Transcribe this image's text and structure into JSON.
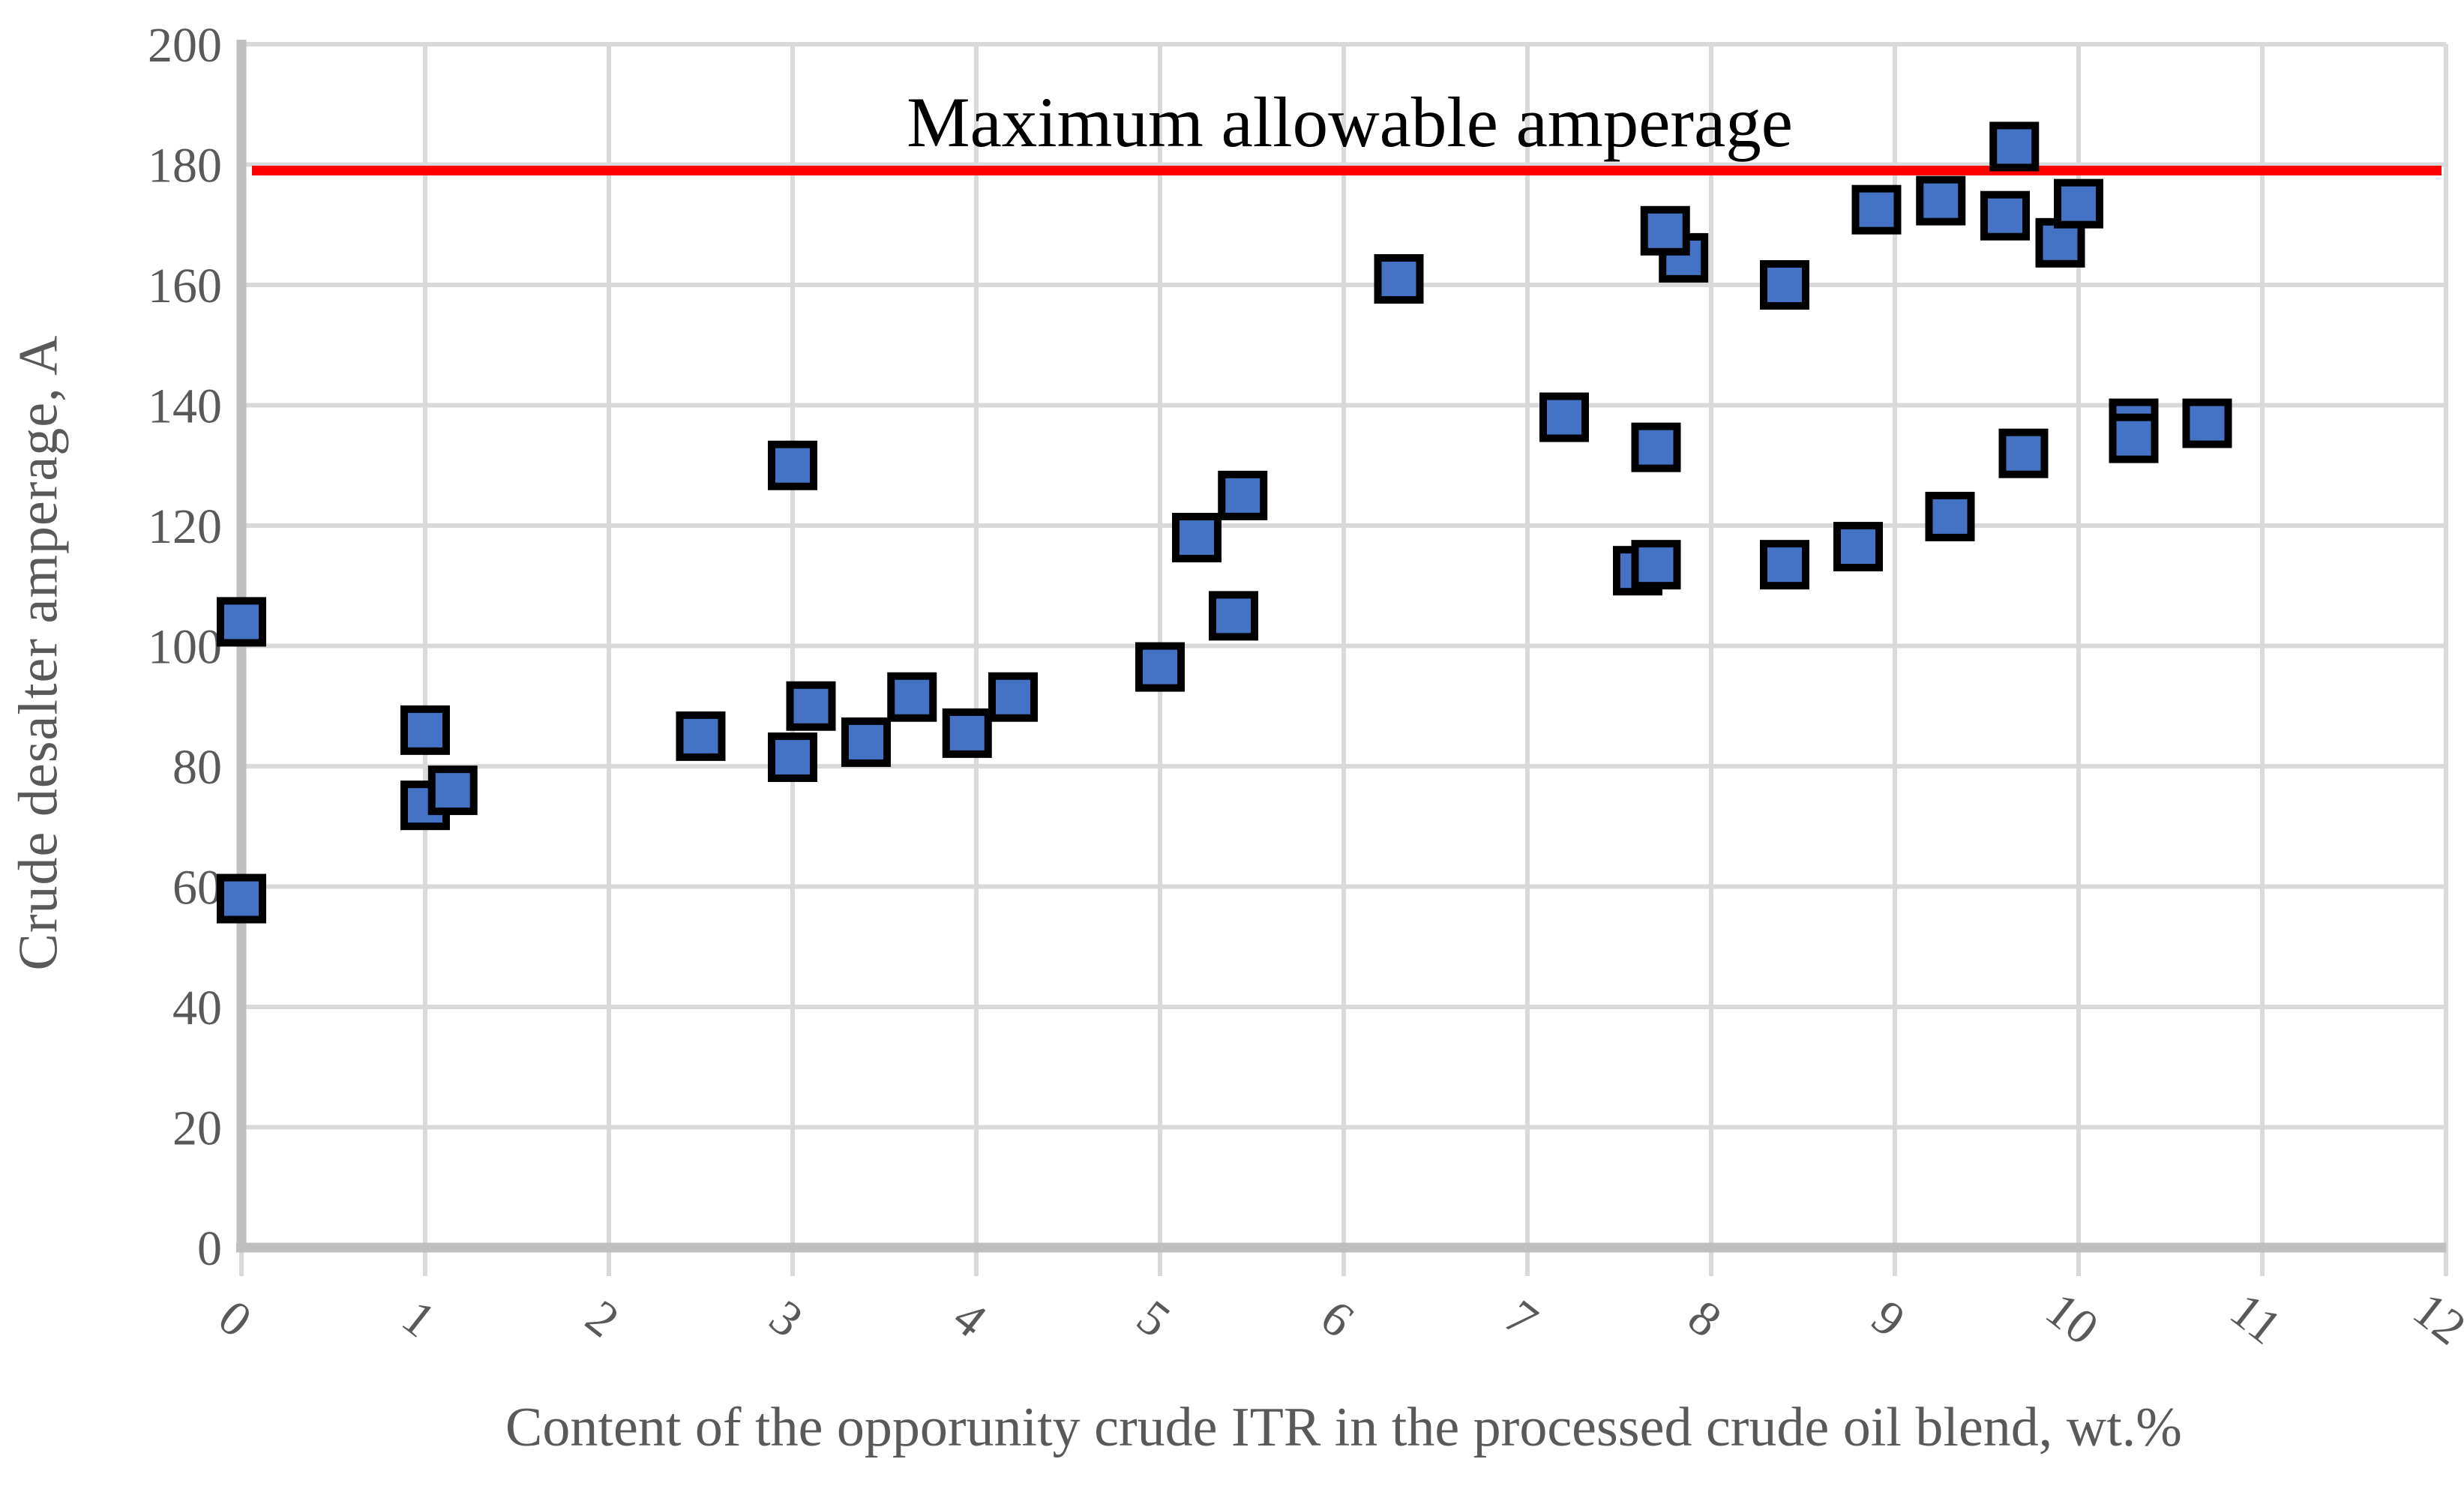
{
  "chart_data": {
    "type": "scatter",
    "title": "",
    "xlabel": "Content of the opporunity crude ITR in the processed crude oil blend, wt.%",
    "ylabel": "Crude desalter amperage, A",
    "xlim": [
      0,
      12
    ],
    "ylim": [
      0,
      200
    ],
    "x_ticks": [
      0,
      1,
      2,
      3,
      4,
      5,
      6,
      7,
      8,
      9,
      10,
      11,
      12
    ],
    "y_ticks": [
      0,
      20,
      40,
      60,
      80,
      100,
      120,
      140,
      160,
      180,
      200
    ],
    "grid": true,
    "legend": "none",
    "series": [
      {
        "name": "Crude desalter amperage",
        "marker": "square",
        "points": [
          [
            0,
            104
          ],
          [
            0,
            58
          ],
          [
            1.0,
            86
          ],
          [
            1.0,
            73.5
          ],
          [
            1.15,
            76
          ],
          [
            2.5,
            85
          ],
          [
            3.1,
            90
          ],
          [
            3.0,
            81.5
          ],
          [
            3.0,
            130
          ],
          [
            3.4,
            84
          ],
          [
            3.65,
            91.5
          ],
          [
            3.95,
            85.5
          ],
          [
            4.2,
            91.5
          ],
          [
            5.0,
            96.5
          ],
          [
            5.2,
            118
          ],
          [
            5.45,
            125
          ],
          [
            5.4,
            105
          ],
          [
            6.3,
            161
          ],
          [
            7.2,
            138
          ],
          [
            7.7,
            133
          ],
          [
            7.6,
            112.5
          ],
          [
            7.7,
            113.5
          ],
          [
            7.85,
            164.5
          ],
          [
            7.75,
            169
          ],
          [
            8.4,
            160
          ],
          [
            8.4,
            113.5
          ],
          [
            8.8,
            116.5
          ],
          [
            8.9,
            172.5
          ],
          [
            9.25,
            174
          ],
          [
            9.3,
            121.5
          ],
          [
            9.65,
            183
          ],
          [
            9.6,
            171.5
          ],
          [
            9.7,
            132
          ],
          [
            9.9,
            167
          ],
          [
            10.0,
            173.5
          ],
          [
            10.3,
            137
          ],
          [
            10.3,
            134.5
          ],
          [
            10.7,
            137
          ]
        ]
      }
    ],
    "max_line": {
      "label": "Maximum allowable amperage",
      "value": 179
    },
    "colors": {
      "marker_fill": "#4472c4",
      "marker_border": "#000000",
      "max_line": "#ff0000",
      "gridline": "#d9d9d9",
      "axis_line": "#bfbfbf",
      "tick_label": "#595959",
      "annotation_text": "#000000"
    }
  }
}
